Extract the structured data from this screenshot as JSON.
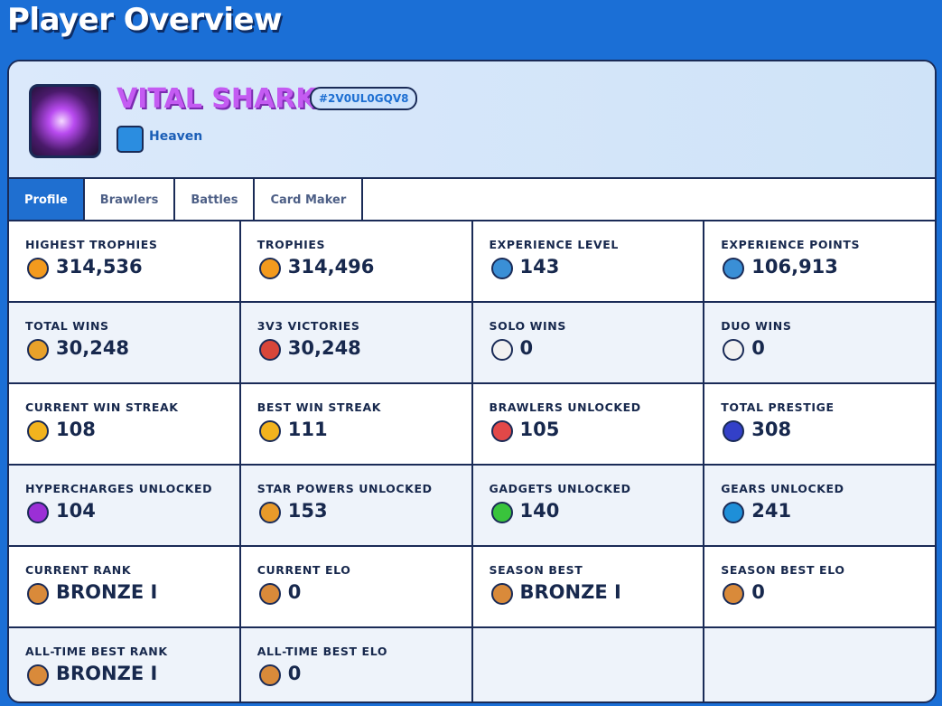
{
  "header": {
    "title": "Player Overview"
  },
  "player": {
    "name": "VITAL SHARK",
    "tag": "#2V0UL0GQV8",
    "club": "Heaven"
  },
  "tabs": [
    "Profile",
    "Brawlers",
    "Battles",
    "Card Maker"
  ],
  "stats": [
    {
      "label": "HIGHEST TROPHIES",
      "value": "314,536"
    },
    {
      "label": "TROPHIES",
      "value": "314,496"
    },
    {
      "label": "EXPERIENCE LEVEL",
      "value": "143"
    },
    {
      "label": "EXPERIENCE POINTS",
      "value": "106,913"
    },
    {
      "label": "TOTAL WINS",
      "value": "30,248"
    },
    {
      "label": "3V3 VICTORIES",
      "value": "30,248"
    },
    {
      "label": "SOLO WINS",
      "value": "0"
    },
    {
      "label": "DUO WINS",
      "value": "0"
    },
    {
      "label": "CURRENT WIN STREAK",
      "value": "108"
    },
    {
      "label": "BEST WIN STREAK",
      "value": "111"
    },
    {
      "label": "BRAWLERS UNLOCKED",
      "value": "105"
    },
    {
      "label": "TOTAL PRESTIGE",
      "value": "308"
    },
    {
      "label": "HYPERCHARGES UNLOCKED",
      "value": "104"
    },
    {
      "label": "STAR POWERS UNLOCKED",
      "value": "153"
    },
    {
      "label": "GADGETS UNLOCKED",
      "value": "140"
    },
    {
      "label": "GEARS UNLOCKED",
      "value": "241"
    },
    {
      "label": "CURRENT RANK",
      "value": "BRONZE I"
    },
    {
      "label": "CURRENT ELO",
      "value": "0"
    },
    {
      "label": "SEASON BEST",
      "value": "BRONZE I"
    },
    {
      "label": "SEASON BEST ELO",
      "value": "0"
    },
    {
      "label": "ALL-TIME BEST RANK",
      "value": "BRONZE I"
    },
    {
      "label": "ALL-TIME BEST ELO",
      "value": "0"
    }
  ]
}
